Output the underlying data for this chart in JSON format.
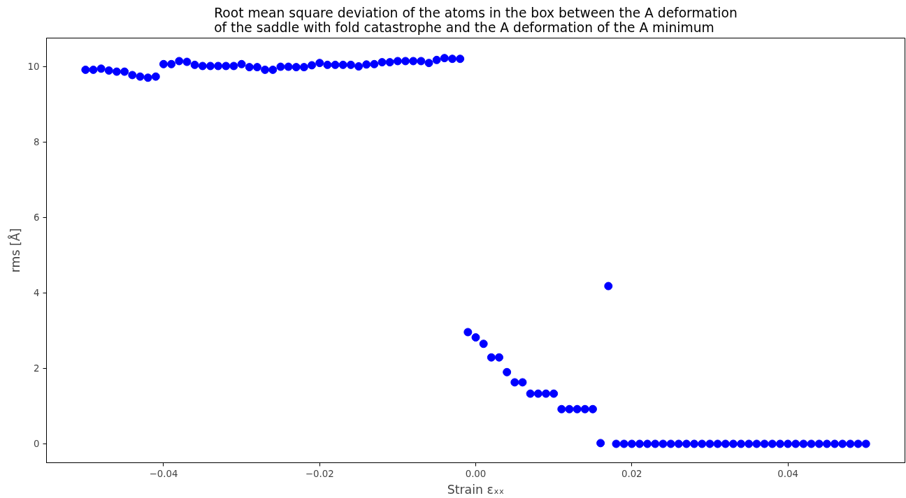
{
  "chart_data": {
    "type": "scatter",
    "title": "Root mean square deviation of the atoms in the box between the A deformation\nof the saddle with fold catastrophe and the A deformation of the A minimum",
    "xlabel": "Strain εₓₓ",
    "ylabel": "rms [Å]",
    "x": [
      -0.05,
      -0.049,
      -0.048,
      -0.047,
      -0.046,
      -0.045,
      -0.044,
      -0.043,
      -0.042,
      -0.041,
      -0.04,
      -0.039,
      -0.038,
      -0.037,
      -0.036,
      -0.035,
      -0.034,
      -0.033,
      -0.032,
      -0.031,
      -0.03,
      -0.029,
      -0.028,
      -0.027,
      -0.026,
      -0.025,
      -0.024,
      -0.023,
      -0.022,
      -0.021,
      -0.02,
      -0.019,
      -0.018,
      -0.017,
      -0.016,
      -0.015,
      -0.014,
      -0.013,
      -0.012,
      -0.011,
      -0.01,
      -0.009,
      -0.008,
      -0.007,
      -0.006,
      -0.005,
      -0.004,
      -0.003,
      -0.002,
      -0.001,
      0.0,
      0.001,
      0.002,
      0.003,
      0.004,
      0.005,
      0.006,
      0.007,
      0.008,
      0.009,
      0.01,
      0.011,
      0.012,
      0.013,
      0.014,
      0.015,
      0.016,
      0.017,
      0.018,
      0.019,
      0.02,
      0.021,
      0.022,
      0.023,
      0.024,
      0.025,
      0.026,
      0.027,
      0.028,
      0.029,
      0.03,
      0.031,
      0.032,
      0.033,
      0.034,
      0.035,
      0.036,
      0.037,
      0.038,
      0.039,
      0.04,
      0.041,
      0.042,
      0.043,
      0.044,
      0.045,
      0.046,
      0.047,
      0.048,
      0.049,
      0.05
    ],
    "series": [
      {
        "color": "#0000ff",
        "values": [
          9.91,
          9.91,
          9.94,
          9.89,
          9.86,
          9.86,
          9.77,
          9.73,
          9.7,
          9.73,
          10.06,
          10.06,
          10.14,
          10.12,
          10.04,
          10.01,
          10.01,
          10.01,
          10.01,
          10.01,
          10.06,
          9.98,
          9.98,
          9.91,
          9.91,
          9.99,
          9.99,
          9.98,
          9.98,
          10.03,
          10.09,
          10.04,
          10.04,
          10.04,
          10.04,
          10.0,
          10.05,
          10.06,
          10.11,
          10.11,
          10.14,
          10.14,
          10.14,
          10.14,
          10.09,
          10.17,
          10.22,
          10.2,
          10.2,
          2.96,
          2.82,
          2.65,
          2.29,
          2.29,
          1.9,
          1.63,
          1.63,
          1.33,
          1.33,
          1.33,
          1.33,
          0.92,
          0.92,
          0.92,
          0.92,
          0.92,
          0.02,
          4.18,
          0,
          0,
          0,
          0,
          0,
          0,
          0,
          0,
          0,
          0,
          0,
          0,
          0,
          0,
          0,
          0,
          0,
          0,
          0,
          0,
          0,
          0,
          0,
          0,
          0,
          0,
          0,
          0,
          0,
          0,
          0,
          0,
          0
        ]
      }
    ],
    "xlim": [
      -0.055,
      0.055
    ],
    "ylim": [
      -0.5,
      10.75
    ],
    "xticks": [
      {
        "value": -0.04,
        "label": "−0.04"
      },
      {
        "value": -0.02,
        "label": "−0.02"
      },
      {
        "value": 0,
        "label": "0.00"
      },
      {
        "value": 0.02,
        "label": "0.02"
      },
      {
        "value": 0.04,
        "label": "0.04"
      }
    ],
    "yticks": [
      0,
      2,
      4,
      6,
      8,
      10
    ],
    "marker": "circle",
    "grid": false
  }
}
